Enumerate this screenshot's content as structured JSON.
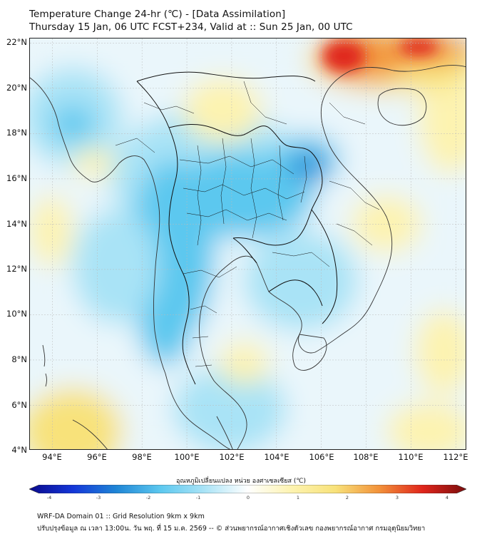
{
  "title_line1": "Temperature Change 24-hr (℃) - [Data Assimilation]",
  "title_line2": "Thursday 15 Jan, 06 UTC FCST+234, Valid at :: Sun 25 Jan, 00 UTC",
  "map": {
    "lat_labels": [
      "22°N",
      "20°N",
      "18°N",
      "16°N",
      "14°N",
      "12°N",
      "10°N",
      "8°N",
      "6°N",
      "4°N"
    ],
    "lon_labels": [
      "94°E",
      "96°E",
      "98°E",
      "100°E",
      "102°E",
      "104°E",
      "106°E",
      "108°E",
      "110°E",
      "112°E"
    ],
    "lat_range": [
      4,
      22.2
    ],
    "lon_range": [
      93,
      112.5
    ],
    "colors": {
      "sea_base": "#eaf6fb",
      "light_blue": "#a9e3f6",
      "cyan": "#5cc8ef",
      "blue": "#1f86d6",
      "light_yellow": "#fdf3b0",
      "yellow": "#f8e27a",
      "orange": "#f2923a",
      "red": "#e0251b",
      "coastline": "#333333",
      "border": "#111111",
      "grid": "#bbbbbb"
    }
  },
  "colorbar": {
    "title": "อุณหภูมิเปลี่ยนแปลง หน่วย องศาเซลเซียส (℃)",
    "ticks": [
      "-4",
      "-3",
      "-2",
      "-1",
      "0",
      "1",
      "2",
      "3",
      "4"
    ],
    "range": [
      -4,
      4
    ],
    "stops": [
      "#0a0a8c",
      "#1436d8",
      "#1f86d6",
      "#5cc8ef",
      "#a9e3f6",
      "#ffffff",
      "#fdf3b0",
      "#f8e27a",
      "#f2923a",
      "#e0251b",
      "#7a0d0d"
    ]
  },
  "footer": {
    "line1": "WRF-DA Domain 01 :: Grid Resolution 9km x 9km",
    "line2": "ปรับปรุงข้อมูล ณ เวลา 13:00น. วัน พฤ. ที่ 15 ม.ค. 2569 -- © ส่วนพยากรณ์อากาศเชิงตัวเลข กองพยากรณ์อากาศ กรมอุตุนิยมวิทยา"
  }
}
